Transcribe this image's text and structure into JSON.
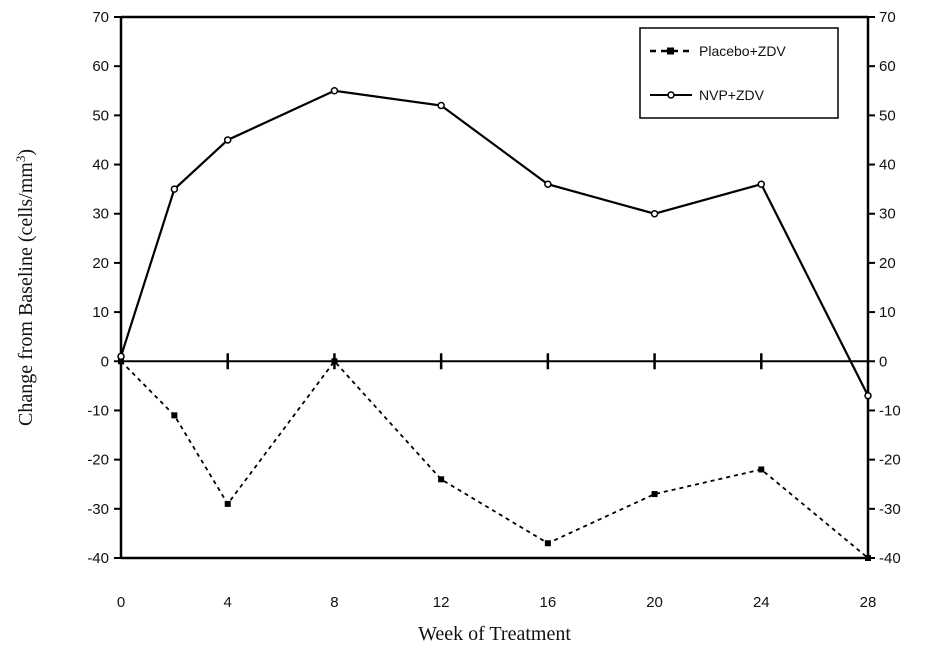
{
  "chart_data": {
    "type": "line",
    "title": "",
    "xlabel": "Week of Treatment",
    "ylabel": "Change from Baseline (cells/mm",
    "ylabel_superscript": "3",
    "ylabel_close": ")",
    "xlim": [
      0,
      28
    ],
    "ylim": [
      -40,
      70
    ],
    "x_ticks": [
      0,
      4,
      8,
      12,
      16,
      20,
      24,
      28
    ],
    "y_ticks": [
      -40,
      -30,
      -20,
      -10,
      0,
      10,
      20,
      30,
      40,
      50,
      60,
      70
    ],
    "grid": false,
    "legend_position": "top-right",
    "series": [
      {
        "name": "Placebo+ZDV",
        "style": "dashed",
        "marker": "square",
        "x": [
          0,
          2,
          4,
          8,
          12,
          16,
          20,
          24,
          28
        ],
        "y": [
          0,
          -11,
          -29,
          0,
          -24,
          -37,
          -27,
          -22,
          -40
        ]
      },
      {
        "name": "NVP+ZDV",
        "style": "solid",
        "marker": "circle",
        "x": [
          0,
          2,
          4,
          8,
          12,
          16,
          20,
          24,
          28
        ],
        "y": [
          1,
          35,
          45,
          55,
          52,
          36,
          30,
          36,
          -7
        ]
      }
    ]
  }
}
